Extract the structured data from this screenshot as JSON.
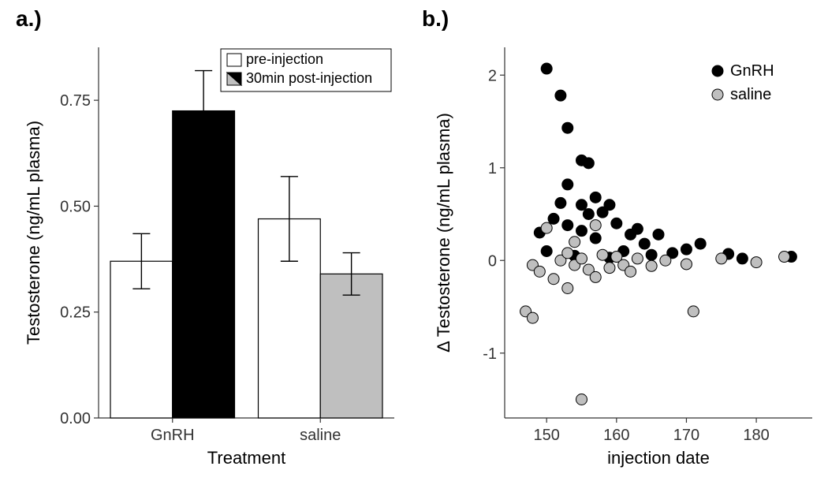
{
  "panel_a": {
    "label": "a.)",
    "type": "bar",
    "categories": [
      "GnRH",
      "saline"
    ],
    "series": [
      {
        "name": "pre-injection",
        "values": [
          0.37,
          0.47
        ],
        "errors": [
          0.065,
          0.1
        ],
        "fill": "#ffffff",
        "stroke": "#000000"
      },
      {
        "name": "30min post-injection",
        "values": [
          0.725,
          0.34
        ],
        "errors": [
          0.095,
          0.05
        ],
        "fill_by_category": [
          "#000000",
          "#bfbfbf"
        ],
        "stroke": "#000000"
      }
    ],
    "xlabel": "Treatment",
    "ylabel": "Testosterone (ng/mL plasma)",
    "ylim": [
      0,
      0.875
    ],
    "yticks": [
      0.0,
      0.25,
      0.5,
      0.75
    ],
    "ytick_labels": [
      "0.00",
      "0.25",
      "0.50",
      "0.75"
    ],
    "label_fontsize": 22,
    "tick_fontsize": 20,
    "panel_label_fontsize": 28,
    "background": "#ffffff",
    "axis_color": "#333333",
    "bar_width": 0.42,
    "error_cap_width": 0.14,
    "legend": {
      "items": [
        {
          "text": "pre-injection",
          "fill": "#ffffff",
          "stroke": "#000000",
          "split": false
        },
        {
          "text": "30min post-injection",
          "fill_a": "#bfbfbf",
          "fill_b": "#000000",
          "stroke": "#000000",
          "split": true
        }
      ],
      "fontsize": 18,
      "box_stroke": "#000000"
    }
  },
  "panel_b": {
    "label": "b.)",
    "type": "scatter",
    "series": [
      {
        "name": "GnRH",
        "color_fill": "#000000",
        "color_stroke": "#000000",
        "points": [
          [
            149,
            0.3
          ],
          [
            150,
            2.07
          ],
          [
            150,
            0.1
          ],
          [
            151,
            0.45
          ],
          [
            152,
            0.62
          ],
          [
            152,
            1.78
          ],
          [
            153,
            0.82
          ],
          [
            153,
            0.38
          ],
          [
            153,
            1.43
          ],
          [
            154,
            0.05
          ],
          [
            155,
            1.08
          ],
          [
            155,
            0.32
          ],
          [
            155,
            0.6
          ],
          [
            156,
            1.05
          ],
          [
            156,
            0.5
          ],
          [
            157,
            0.68
          ],
          [
            157,
            0.24
          ],
          [
            158,
            0.52
          ],
          [
            159,
            0.03
          ],
          [
            159,
            0.6
          ],
          [
            160,
            0.4
          ],
          [
            161,
            0.1
          ],
          [
            162,
            0.28
          ],
          [
            163,
            0.34
          ],
          [
            164,
            0.18
          ],
          [
            165,
            0.06
          ],
          [
            166,
            0.28
          ],
          [
            168,
            0.08
          ],
          [
            170,
            0.12
          ],
          [
            172,
            0.18
          ],
          [
            176,
            0.07
          ],
          [
            178,
            0.02
          ],
          [
            185,
            0.04
          ]
        ]
      },
      {
        "name": "saline",
        "color_fill": "#bfbfbf",
        "color_stroke": "#000000",
        "points": [
          [
            147,
            -0.55
          ],
          [
            148,
            -0.05
          ],
          [
            148,
            -0.62
          ],
          [
            149,
            -0.12
          ],
          [
            150,
            0.35
          ],
          [
            151,
            -0.2
          ],
          [
            152,
            0.0
          ],
          [
            153,
            0.08
          ],
          [
            153,
            -0.3
          ],
          [
            154,
            -0.05
          ],
          [
            154,
            0.2
          ],
          [
            155,
            0.02
          ],
          [
            155,
            -1.5
          ],
          [
            156,
            -0.1
          ],
          [
            157,
            0.38
          ],
          [
            157,
            -0.18
          ],
          [
            158,
            0.06
          ],
          [
            159,
            -0.08
          ],
          [
            160,
            0.04
          ],
          [
            161,
            -0.05
          ],
          [
            162,
            -0.12
          ],
          [
            163,
            0.02
          ],
          [
            165,
            -0.06
          ],
          [
            167,
            0.0
          ],
          [
            170,
            -0.04
          ],
          [
            171,
            -0.55
          ],
          [
            175,
            0.02
          ],
          [
            180,
            -0.02
          ],
          [
            184,
            0.04
          ]
        ]
      }
    ],
    "xlabel": "injection date",
    "ylabel": "Δ Testosterone (ng/mL plasma)",
    "xlim": [
      144,
      188
    ],
    "xticks": [
      150,
      160,
      170,
      180
    ],
    "ylim": [
      -1.7,
      2.3
    ],
    "yticks": [
      -1,
      0,
      1,
      2
    ],
    "label_fontsize": 22,
    "tick_fontsize": 20,
    "panel_label_fontsize": 28,
    "background": "#ffffff",
    "axis_color": "#333333",
    "marker_radius": 7,
    "legend": {
      "items": [
        {
          "text": "GnRH",
          "fill": "#000000",
          "stroke": "#000000"
        },
        {
          "text": "saline",
          "fill": "#bfbfbf",
          "stroke": "#000000"
        }
      ],
      "fontsize": 20
    }
  }
}
